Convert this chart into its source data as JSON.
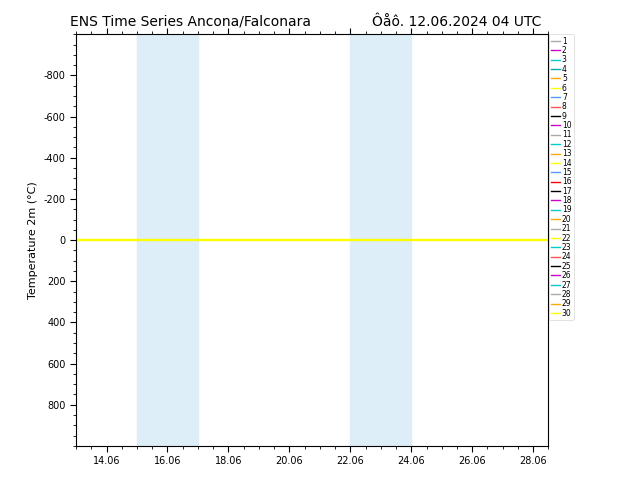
{
  "title": "ENS Time Series Ancona/Falconara",
  "title2": "Ôåô. 12.06.2024 04 UTC",
  "ylabel": "Temperature 2m (°C)",
  "ylim_top": -1000,
  "ylim_bottom": 1000,
  "yticks": [
    -800,
    -600,
    -400,
    -200,
    0,
    200,
    400,
    600,
    800
  ],
  "xlim": [
    13.0,
    28.5
  ],
  "xticks_values": [
    14.0,
    16.0,
    18.0,
    20.0,
    22.0,
    24.0,
    26.0,
    28.0
  ],
  "xticks_labels": [
    "14.06",
    "16.06",
    "18.06",
    "20.06",
    "22.06",
    "24.06",
    "26.06",
    "28.06"
  ],
  "shade_regions": [
    [
      15.0,
      15.5
    ],
    [
      15.5,
      17.0
    ],
    [
      22.0,
      22.5
    ],
    [
      22.5,
      24.0
    ]
  ],
  "shade_color": "#ddeef8",
  "line_y_value": 0,
  "member_colors": [
    "#aaaaaa",
    "#cc00cc",
    "#00cccc",
    "#00aaaa",
    "#ffaa00",
    "#ffff00",
    "#5599ff",
    "#ff5555",
    "#000000",
    "#cc00cc",
    "#aaaaaa",
    "#00cccc",
    "#ffaa00",
    "#ffff00",
    "#5599ff",
    "#ff0000",
    "#000000",
    "#cc00cc",
    "#00cccc",
    "#ffaa00",
    "#aaaaaa",
    "#ffff00",
    "#00cccc",
    "#ff5555",
    "#000000",
    "#cc00cc",
    "#00cccc",
    "#aaaaaa",
    "#ffaa00",
    "#ffff00"
  ],
  "num_members": 30,
  "bg_color": "#ffffff",
  "legend_fontsize": 5.5,
  "tick_fontsize": 7,
  "ylabel_fontsize": 8,
  "title_fontsize": 10
}
